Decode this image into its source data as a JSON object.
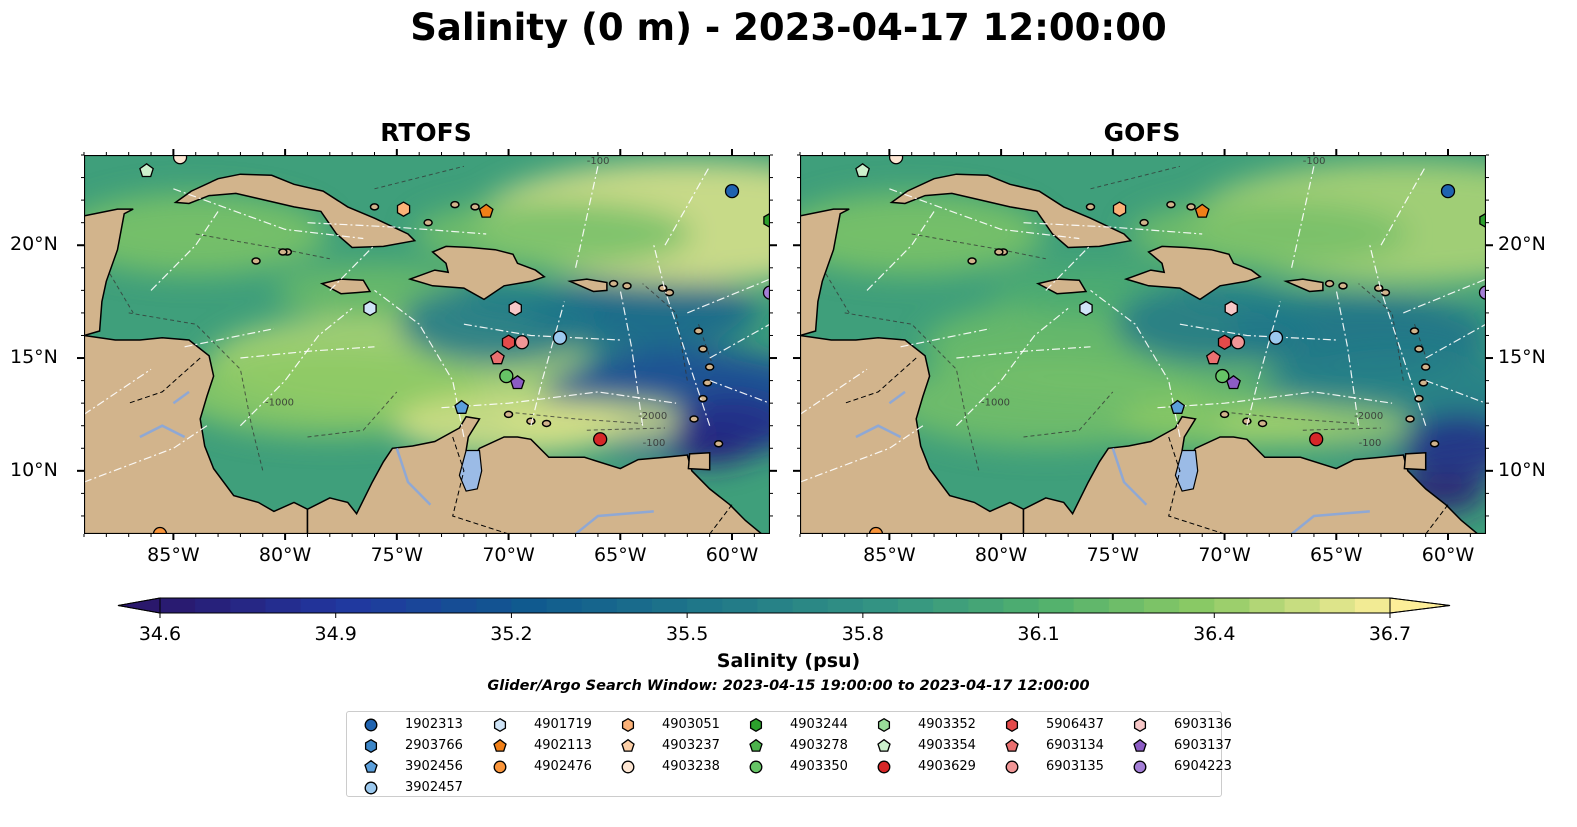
{
  "title": "Salinity (0 m) - 2023-04-17 12:00:00",
  "panels": [
    {
      "title": "RTOFS",
      "variant": "rtofs"
    },
    {
      "title": "GOFS",
      "variant": "gofs"
    }
  ],
  "map": {
    "lon_range": [
      -89,
      -58.3
    ],
    "lat_range": [
      7.2,
      24
    ],
    "lon_ticks": [
      {
        "v": -85,
        "label": "85°W"
      },
      {
        "v": -80,
        "label": "80°W"
      },
      {
        "v": -75,
        "label": "75°W"
      },
      {
        "v": -70,
        "label": "70°W"
      },
      {
        "v": -65,
        "label": "65°W"
      },
      {
        "v": -60,
        "label": "60°W"
      }
    ],
    "lat_ticks": [
      {
        "v": 20,
        "label": "20°N"
      },
      {
        "v": 15,
        "label": "15°N"
      },
      {
        "v": 10,
        "label": "10°N"
      }
    ],
    "land_color": "#d2b48c",
    "lake_color": "#9bbbe6",
    "contour_labels": [
      "-100",
      "-1000",
      "-2000"
    ]
  },
  "colorbar": {
    "min": 34.6,
    "max": 36.7,
    "ticks": [
      "34.6",
      "34.9",
      "35.2",
      "35.5",
      "35.8",
      "36.1",
      "36.4",
      "36.7"
    ],
    "tick_values": [
      34.6,
      34.9,
      35.2,
      35.5,
      35.8,
      36.1,
      36.4,
      36.7
    ],
    "label": "Salinity (psu)",
    "colormap": "haline",
    "extend": "both"
  },
  "search_window": "Glider/Argo Search Window: 2023-04-15 19:00:00 to 2023-04-17 12:00:00",
  "chart_data": {
    "type": "scatter",
    "xlabel": "",
    "ylabel": "",
    "series": [
      {
        "name": "1902313",
        "marker": "circle",
        "color": "#1f63b0",
        "x": -60.0,
        "y": 22.4
      },
      {
        "name": "2903766",
        "marker": "hexagon",
        "color": "#3c86c8",
        "x": null,
        "y": null
      },
      {
        "name": "3902456",
        "marker": "pentagon",
        "color": "#5b9fdb",
        "x": -72.1,
        "y": 12.8
      },
      {
        "name": "3902457",
        "marker": "circle",
        "color": "#9cc9ee",
        "x": -67.7,
        "y": 15.9
      },
      {
        "name": "4901719",
        "marker": "hexagon",
        "color": "#cfe4f7",
        "x": -76.2,
        "y": 17.2
      },
      {
        "name": "4902113",
        "marker": "pentagon",
        "color": "#f07f18",
        "x": -71.0,
        "y": 21.5
      },
      {
        "name": "4902476",
        "marker": "circle",
        "color": "#f9953b",
        "x": -85.6,
        "y": 7.2
      },
      {
        "name": "4903051",
        "marker": "hexagon",
        "color": "#fcb278",
        "x": -74.7,
        "y": 21.6
      },
      {
        "name": "4903237",
        "marker": "pentagon",
        "color": "#fdd0a8",
        "x": null,
        "y": null
      },
      {
        "name": "4903238",
        "marker": "circle",
        "color": "#fde6d3",
        "x": -84.7,
        "y": 23.9
      },
      {
        "name": "4903244",
        "marker": "hexagon",
        "color": "#2ca02c",
        "x": -58.3,
        "y": 21.1
      },
      {
        "name": "4903278",
        "marker": "pentagon",
        "color": "#4db34d",
        "x": null,
        "y": null
      },
      {
        "name": "4903350",
        "marker": "circle",
        "color": "#66c466",
        "x": -70.1,
        "y": 14.2
      },
      {
        "name": "4903352",
        "marker": "hexagon",
        "color": "#99dd99",
        "x": null,
        "y": null
      },
      {
        "name": "4903354",
        "marker": "pentagon",
        "color": "#ccf0cc",
        "x": -86.2,
        "y": 23.3
      },
      {
        "name": "4903629",
        "marker": "circle",
        "color": "#d62728",
        "x": -65.9,
        "y": 11.4
      },
      {
        "name": "5906437",
        "marker": "hexagon",
        "color": "#e34a4a",
        "x": -70.0,
        "y": 15.7
      },
      {
        "name": "6903134",
        "marker": "pentagon",
        "color": "#ea7070",
        "x": -70.5,
        "y": 15.0
      },
      {
        "name": "6903135",
        "marker": "circle",
        "color": "#f09696",
        "x": -69.4,
        "y": 15.7
      },
      {
        "name": "6903136",
        "marker": "hexagon",
        "color": "#f8c8c8",
        "x": -69.7,
        "y": 17.2
      },
      {
        "name": "6903137",
        "marker": "pentagon",
        "color": "#8c5cc4",
        "x": -69.6,
        "y": 13.9
      },
      {
        "name": "6904223",
        "marker": "circle",
        "color": "#a47fd6",
        "x": -58.3,
        "y": 17.9
      }
    ]
  }
}
